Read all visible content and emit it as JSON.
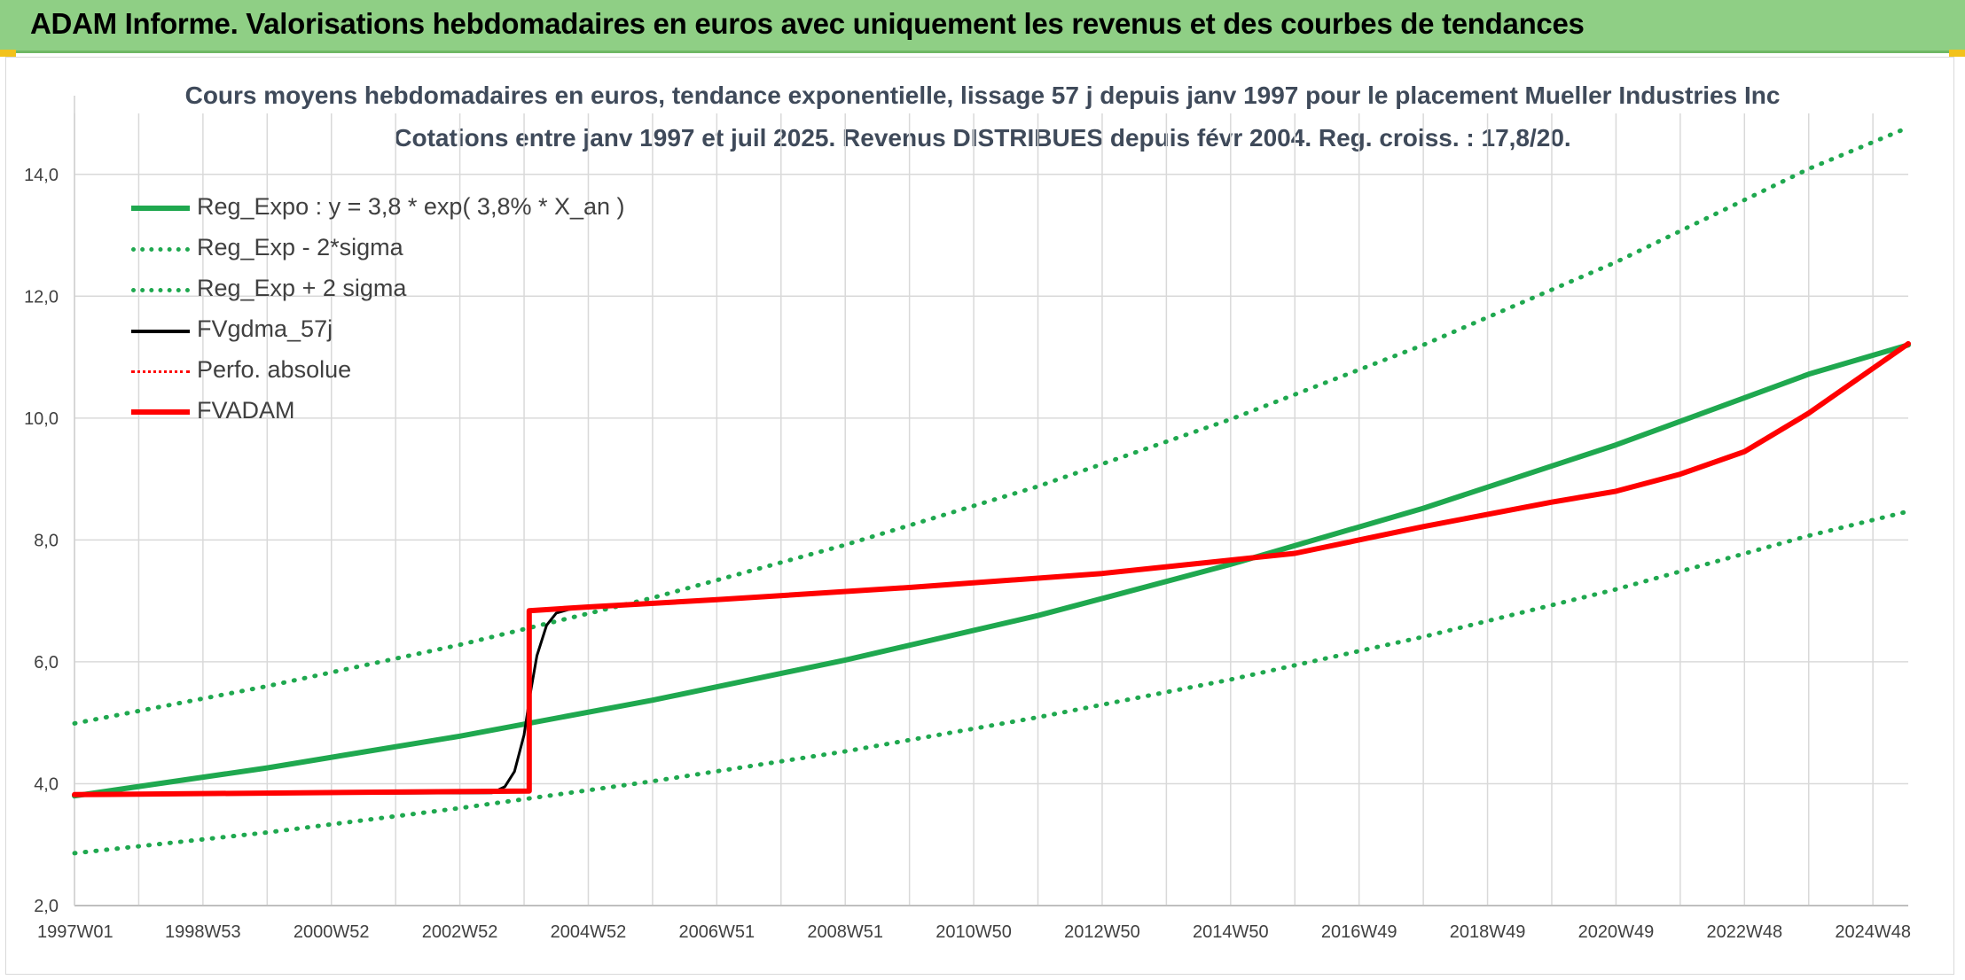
{
  "header": {
    "title": "ADAM Informe. Valorisations hebdomadaires en euros avec uniquement les revenus et des courbes de tendances"
  },
  "colors": {
    "header_bg": "#8fcf85",
    "reg": "#1fa84f",
    "fvgdma": "#000000",
    "fvadam": "#ff0000",
    "grid": "#d9d9d9"
  },
  "chart_data": {
    "type": "line",
    "title_line1": "Cours moyens hebdomadaires en euros, tendance exponentielle, lissage 57 j depuis janv 1997 pour le placement Mueller Industries Inc",
    "title_line2": "Cotations entre janv 1997 et juil 2025. Revenus DISTRIBUES depuis févr 2004. Reg. croiss. : 17,8/20.",
    "xlabel": "",
    "ylabel": "",
    "x_range_years": [
      1997.0,
      2025.55
    ],
    "ylim": [
      2.0,
      15.0
    ],
    "y_ticks": [
      "2,0",
      "4,0",
      "6,0",
      "8,0",
      "10,0",
      "12,0",
      "14,0"
    ],
    "y_tick_values": [
      2,
      4,
      6,
      8,
      10,
      12,
      14
    ],
    "x_tick_labels": [
      "1997W01",
      "1998W53",
      "2000W52",
      "2002W52",
      "2004W52",
      "2006W51",
      "2008W51",
      "2010W50",
      "2012W50",
      "2014W50",
      "2016W49",
      "2018W49",
      "2020W49",
      "2022W48",
      "2024W48"
    ],
    "x_tick_years": [
      1997.0,
      1999.0,
      2001.0,
      2003.0,
      2005.0,
      2007.0,
      2009.0,
      2011.0,
      2013.0,
      2015.0,
      2017.0,
      2019.0,
      2021.0,
      2023.0,
      2025.0
    ],
    "legend_position": "top-left",
    "grid": true,
    "series": [
      {
        "name": "Reg_Expo : y = 3,8 * exp( 3,8% *  X_an )",
        "style": "solid",
        "color": "#1fa84f",
        "x": [
          1997.0,
          2000.0,
          2003.0,
          2006.0,
          2009.0,
          2012.0,
          2015.0,
          2018.0,
          2021.0,
          2024.0,
          2025.55
        ],
        "y": [
          3.8,
          4.26,
          4.78,
          5.37,
          6.03,
          6.76,
          7.6,
          8.52,
          9.56,
          10.72,
          11.2
        ]
      },
      {
        "name": "Reg_Exp - 2*sigma",
        "style": "dotted",
        "color": "#1fa84f",
        "x": [
          1997.0,
          2000.0,
          2003.0,
          2006.0,
          2009.0,
          2012.0,
          2015.0,
          2018.0,
          2021.0,
          2024.0,
          2025.55
        ],
        "y": [
          2.86,
          3.2,
          3.6,
          4.04,
          4.53,
          5.09,
          5.71,
          6.41,
          7.19,
          8.07,
          8.47
        ]
      },
      {
        "name": "Reg_Exp + 2 sigma",
        "style": "dotted",
        "color": "#1fa84f",
        "x": [
          1997.0,
          2000.0,
          2003.0,
          2006.0,
          2009.0,
          2012.0,
          2015.0,
          2018.0,
          2021.0,
          2024.0,
          2025.55
        ],
        "y": [
          4.99,
          5.6,
          6.28,
          7.05,
          7.92,
          8.88,
          9.98,
          11.2,
          12.56,
          14.09,
          14.77
        ]
      },
      {
        "name": "FVgdma_57j",
        "style": "solid",
        "color": "#000000",
        "x": [
          1997.0,
          2003.5,
          2003.7,
          2003.85,
          2004.0,
          2004.1,
          2004.2,
          2004.35,
          2004.5,
          2004.7,
          2005.0,
          2007.0,
          2010.0,
          2013.0,
          2015.0,
          2016.0,
          2018.0,
          2020.0,
          2021.0,
          2022.0,
          2023.0,
          2024.0,
          2025.55
        ],
        "y": [
          3.82,
          3.85,
          3.95,
          4.2,
          4.8,
          5.5,
          6.1,
          6.6,
          6.8,
          6.86,
          6.9,
          7.02,
          7.22,
          7.45,
          7.67,
          7.78,
          8.22,
          8.62,
          8.8,
          9.08,
          9.45,
          10.08,
          11.2
        ]
      },
      {
        "name": "Perfo. absolue",
        "style": "dotted",
        "color": "#ff0000",
        "x": [],
        "y": []
      },
      {
        "name": "FVADAM",
        "style": "solid",
        "color": "#ff0000",
        "x": [
          1997.0,
          2004.08,
          2004.08,
          2005.0,
          2007.0,
          2010.0,
          2013.0,
          2015.0,
          2016.0,
          2018.0,
          2020.0,
          2021.0,
          2022.0,
          2023.0,
          2024.0,
          2025.55
        ],
        "y": [
          3.82,
          3.88,
          6.84,
          6.9,
          7.02,
          7.22,
          7.45,
          7.67,
          7.78,
          8.22,
          8.62,
          8.8,
          9.08,
          9.45,
          10.08,
          11.22
        ]
      }
    ]
  }
}
